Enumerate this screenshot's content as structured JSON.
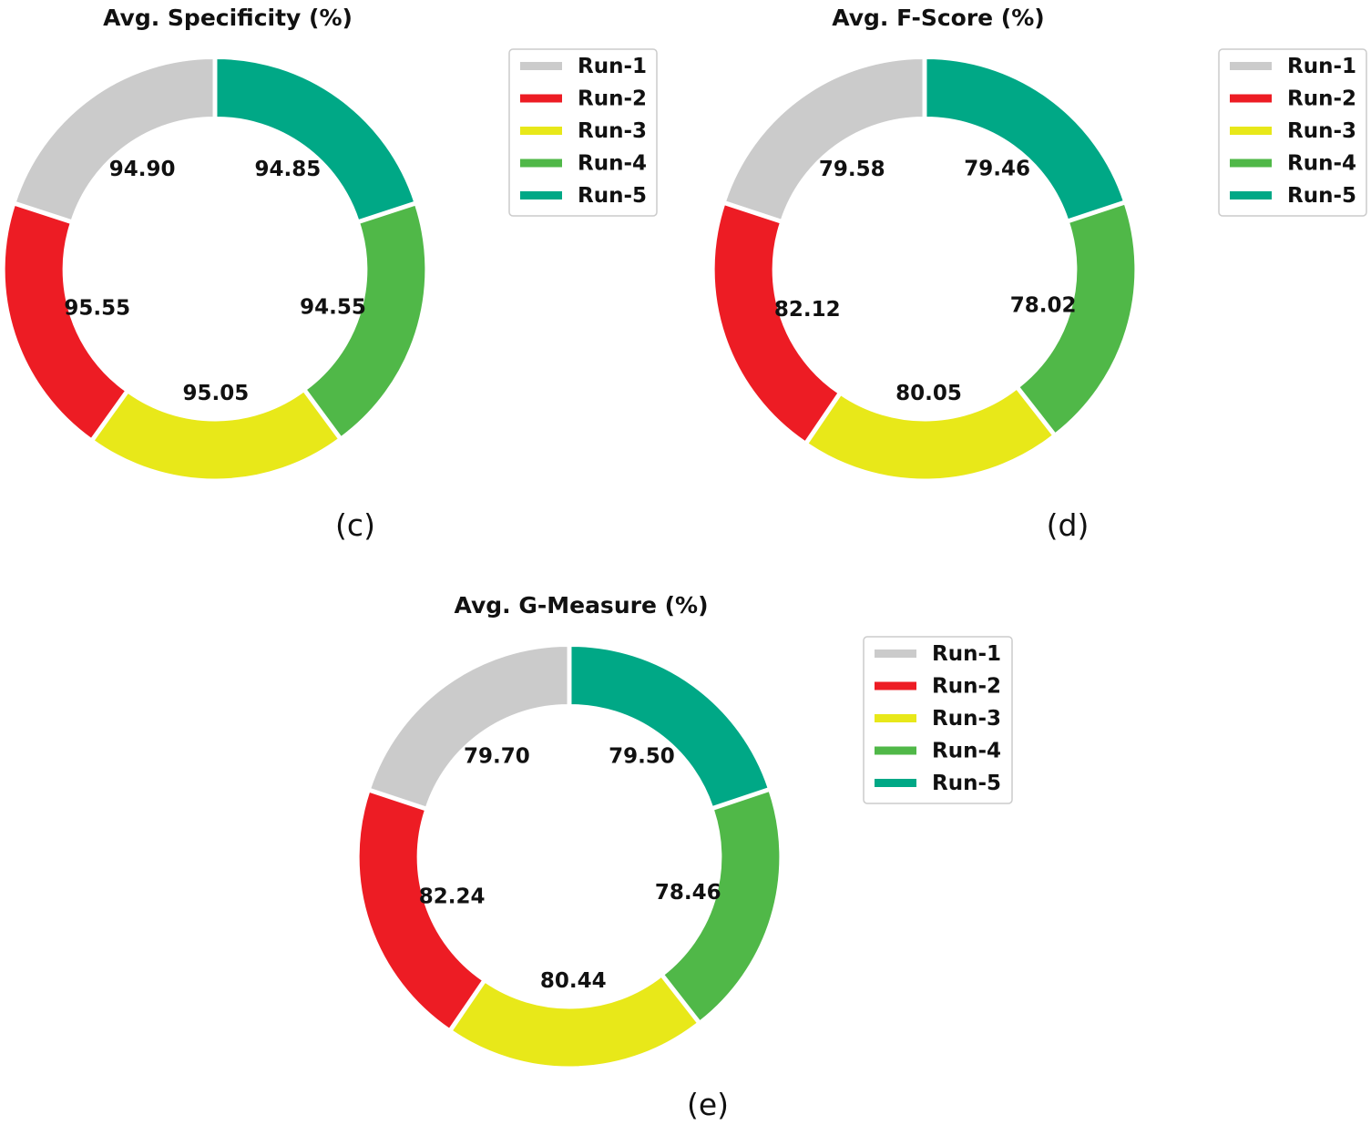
{
  "colors": {
    "run1": "#cbcbcb",
    "run2": "#ed1c24",
    "run3": "#e8e819",
    "run4": "#50b848",
    "run5": "#00a886"
  },
  "chart_data": [
    {
      "type": "pie",
      "subtype": "donut",
      "title": "Avg. Specificity (%)",
      "panel_label": "(c)",
      "categories": [
        "Run-1",
        "Run-2",
        "Run-3",
        "Run-4",
        "Run-5"
      ],
      "values": [
        94.9,
        95.55,
        95.05,
        94.55,
        94.85
      ],
      "value_labels": [
        "94.90",
        "95.55",
        "95.05",
        "94.55",
        "94.85"
      ],
      "legend": "right"
    },
    {
      "type": "pie",
      "subtype": "donut",
      "title": "Avg. F-Score (%)",
      "panel_label": "(d)",
      "categories": [
        "Run-1",
        "Run-2",
        "Run-3",
        "Run-4",
        "Run-5"
      ],
      "values": [
        79.58,
        82.12,
        80.05,
        78.02,
        79.46
      ],
      "value_labels": [
        "79.58",
        "82.12",
        "80.05",
        "78.02",
        "79.46"
      ],
      "legend": "right"
    },
    {
      "type": "pie",
      "subtype": "donut",
      "title": "Avg. G-Measure (%)",
      "panel_label": "(e)",
      "categories": [
        "Run-1",
        "Run-2",
        "Run-3",
        "Run-4",
        "Run-5"
      ],
      "values": [
        79.7,
        82.24,
        80.44,
        78.46,
        79.5
      ],
      "value_labels": [
        "79.70",
        "82.24",
        "80.44",
        "78.46",
        "79.50"
      ],
      "legend": "right"
    }
  ]
}
